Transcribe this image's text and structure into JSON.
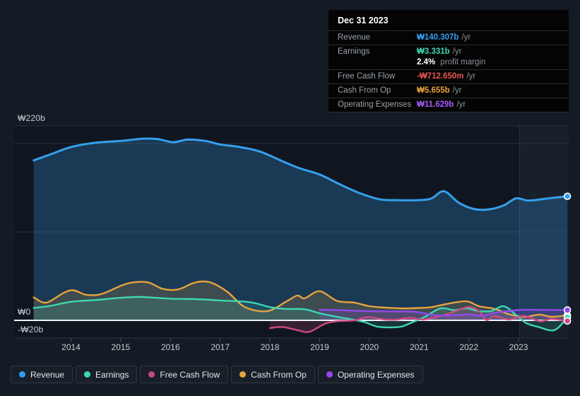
{
  "axis": {
    "y_labels": [
      {
        "text": "₩220b"
      },
      {
        "text": "₩0"
      },
      {
        "text": "-₩20b"
      }
    ],
    "x_labels": [
      "2014",
      "2015",
      "2016",
      "2017",
      "2018",
      "2019",
      "2020",
      "2021",
      "2022",
      "2023"
    ]
  },
  "tooltip": {
    "date": "Dec 31 2023",
    "rows": [
      {
        "label": "Revenue",
        "value": "₩140.307b",
        "suffix": "/yr",
        "color": "#36a0f2"
      },
      {
        "label": "Earnings",
        "value": "₩3.331b",
        "suffix": "/yr",
        "color": "#40d6b4",
        "sub_value": "2.4%",
        "sub_suffix": "profit margin"
      },
      {
        "label": "Free Cash Flow",
        "value": "-₩712.650m",
        "suffix": "/yr",
        "color": "#e4544e"
      },
      {
        "label": "Cash From Op",
        "value": "₩5.655b",
        "suffix": "/yr",
        "color": "#e8a33d"
      },
      {
        "label": "Operating Expenses",
        "value": "₩11.629b",
        "suffix": "/yr",
        "color": "#a45cf5"
      }
    ]
  },
  "legend": {
    "items": [
      {
        "label": "Revenue",
        "color": "#2f9df2"
      },
      {
        "label": "Earnings",
        "color": "#3fd6b3"
      },
      {
        "label": "Free Cash Flow",
        "color": "#c9487f"
      },
      {
        "label": "Cash From Op",
        "color": "#e8a33d"
      },
      {
        "label": "Operating Expenses",
        "color": "#9b43ee"
      }
    ]
  },
  "chart_data": {
    "type": "line",
    "unit": "KRW billions (₩b)",
    "title": "",
    "xlabel": "",
    "ylabel": "",
    "x_range": [
      2013.25,
      2024.0
    ],
    "ylim": [
      -20,
      220
    ],
    "y_gridlines": [
      220,
      200,
      100,
      0,
      -20
    ],
    "y_tick_labels": [
      "₩220b",
      "₩0",
      "-₩20b"
    ],
    "x_tick_labels": [
      "2014",
      "2015",
      "2016",
      "2017",
      "2018",
      "2019",
      "2020",
      "2021",
      "2022",
      "2023"
    ],
    "highlight_band": {
      "start": 2023.02,
      "end": 2024.0
    },
    "grid": true,
    "legend_position": "bottom",
    "series": [
      {
        "name": "Revenue",
        "color": "#369fec",
        "fill_opacity": 0.26,
        "line_width": 3,
        "points": [
          [
            2013.25,
            181
          ],
          [
            2013.6,
            188
          ],
          [
            2014,
            196
          ],
          [
            2014.5,
            201
          ],
          [
            2015,
            203
          ],
          [
            2015.45,
            205.5
          ],
          [
            2015.75,
            205
          ],
          [
            2016.05,
            201.5
          ],
          [
            2016.35,
            204.5
          ],
          [
            2016.7,
            203
          ],
          [
            2017,
            199
          ],
          [
            2017.4,
            196
          ],
          [
            2017.8,
            191
          ],
          [
            2018.25,
            180
          ],
          [
            2018.6,
            172
          ],
          [
            2019,
            165
          ],
          [
            2019.4,
            154
          ],
          [
            2019.8,
            144
          ],
          [
            2020.2,
            137
          ],
          [
            2020.5,
            136
          ],
          [
            2021,
            136
          ],
          [
            2021.25,
            138
          ],
          [
            2021.5,
            146
          ],
          [
            2021.8,
            133
          ],
          [
            2022.1,
            126
          ],
          [
            2022.4,
            125.5
          ],
          [
            2022.7,
            130
          ],
          [
            2022.95,
            138
          ],
          [
            2023.2,
            135.5
          ],
          [
            2023.6,
            138
          ],
          [
            2023.98,
            140.307
          ]
        ]
      },
      {
        "name": "Cash From Op",
        "color": "#e8a33d",
        "fill_opacity": 0.18,
        "line_width": 2.4,
        "points": [
          [
            2013.25,
            26
          ],
          [
            2013.5,
            20
          ],
          [
            2013.85,
            31
          ],
          [
            2014.05,
            34
          ],
          [
            2014.3,
            29
          ],
          [
            2014.6,
            29.5
          ],
          [
            2015,
            39
          ],
          [
            2015.25,
            43
          ],
          [
            2015.55,
            43
          ],
          [
            2015.85,
            35.5
          ],
          [
            2016.15,
            35
          ],
          [
            2016.45,
            42
          ],
          [
            2016.65,
            44
          ],
          [
            2016.85,
            42
          ],
          [
            2017.15,
            32
          ],
          [
            2017.5,
            15
          ],
          [
            2017.95,
            10.5
          ],
          [
            2018.35,
            22
          ],
          [
            2018.55,
            28
          ],
          [
            2018.7,
            25
          ],
          [
            2019,
            33
          ],
          [
            2019.35,
            22
          ],
          [
            2019.7,
            20
          ],
          [
            2020,
            16
          ],
          [
            2020.3,
            14.5
          ],
          [
            2020.65,
            13.5
          ],
          [
            2021,
            14
          ],
          [
            2021.25,
            15
          ],
          [
            2021.55,
            18.5
          ],
          [
            2021.95,
            21.5
          ],
          [
            2022.2,
            16
          ],
          [
            2022.52,
            13
          ],
          [
            2022.8,
            7
          ],
          [
            2023.12,
            4
          ],
          [
            2023.42,
            6.5
          ],
          [
            2023.66,
            4
          ],
          [
            2023.98,
            5.655
          ]
        ]
      },
      {
        "name": "Earnings",
        "color": "#3fd6b3",
        "fill_opacity": 0.16,
        "line_width": 2.4,
        "points": [
          [
            2013.25,
            14
          ],
          [
            2013.6,
            16.5
          ],
          [
            2014,
            21
          ],
          [
            2014.5,
            23
          ],
          [
            2015,
            25.5
          ],
          [
            2015.4,
            26.5
          ],
          [
            2016,
            24.5
          ],
          [
            2016.5,
            24
          ],
          [
            2017,
            22.5
          ],
          [
            2017.6,
            20.5
          ],
          [
            2018,
            15
          ],
          [
            2018.3,
            13
          ],
          [
            2018.7,
            12.5
          ],
          [
            2019,
            8
          ],
          [
            2019.3,
            4.5
          ],
          [
            2019.6,
            1.5
          ],
          [
            2019.9,
            -2
          ],
          [
            2020.15,
            -7
          ],
          [
            2020.4,
            -8
          ],
          [
            2020.65,
            -7
          ],
          [
            2020.87,
            -2
          ],
          [
            2021.1,
            3.5
          ],
          [
            2021.43,
            13.5
          ],
          [
            2021.7,
            11.5
          ],
          [
            2021.95,
            13.5
          ],
          [
            2022.2,
            10.5
          ],
          [
            2022.45,
            10.5
          ],
          [
            2022.7,
            16
          ],
          [
            2022.95,
            6
          ],
          [
            2023.15,
            -3
          ],
          [
            2023.4,
            -7.5
          ],
          [
            2023.72,
            -11
          ],
          [
            2023.98,
            3.331
          ]
        ]
      },
      {
        "name": "Free Cash Flow",
        "color": "#cf4a82",
        "fill_opacity": 0.2,
        "line_width": 2.4,
        "points": [
          [
            2018,
            -8.8
          ],
          [
            2018.25,
            -7.5
          ],
          [
            2018.55,
            -11
          ],
          [
            2018.79,
            -13
          ],
          [
            2019.1,
            -4
          ],
          [
            2019.35,
            -1
          ],
          [
            2019.7,
            0
          ],
          [
            2019.97,
            3.5
          ],
          [
            2020.3,
            1
          ],
          [
            2020.55,
            0.8
          ],
          [
            2020.82,
            3
          ],
          [
            2021.1,
            1
          ],
          [
            2021.53,
            6.5
          ],
          [
            2021.98,
            15
          ],
          [
            2022.2,
            10.5
          ],
          [
            2022.35,
            0.5
          ],
          [
            2022.52,
            5
          ],
          [
            2022.8,
            1
          ],
          [
            2023.12,
            5
          ],
          [
            2023.42,
            -1
          ],
          [
            2023.66,
            1.5
          ],
          [
            2023.98,
            -0.713
          ]
        ]
      },
      {
        "name": "Operating Expenses",
        "color": "#9348ec",
        "fill_opacity": 0.22,
        "line_width": 2.4,
        "points": [
          [
            2019,
            12
          ],
          [
            2019.4,
            11.5
          ],
          [
            2019.97,
            10.4
          ],
          [
            2020.5,
            10
          ],
          [
            2020.9,
            9.8
          ],
          [
            2021.34,
            5.8
          ],
          [
            2021.7,
            5.6
          ],
          [
            2022,
            7
          ],
          [
            2022.25,
            5
          ],
          [
            2022.52,
            8.5
          ],
          [
            2022.8,
            10.5
          ],
          [
            2023.1,
            12
          ],
          [
            2023.5,
            11.8
          ],
          [
            2023.98,
            11.629
          ]
        ]
      }
    ]
  }
}
